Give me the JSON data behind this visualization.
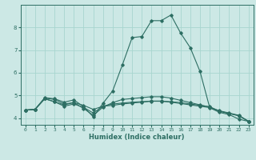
{
  "xlabel": "Humidex (Indice chaleur)",
  "bg_color": "#cce8e5",
  "line_color": "#2d6e63",
  "grid_color": "#a8d5cf",
  "xlim": [
    -0.5,
    23.5
  ],
  "ylim": [
    3.7,
    9.0
  ],
  "yticks": [
    4,
    5,
    6,
    7,
    8
  ],
  "xticks": [
    0,
    1,
    2,
    3,
    4,
    5,
    6,
    7,
    8,
    9,
    10,
    11,
    12,
    13,
    14,
    15,
    16,
    17,
    18,
    19,
    20,
    21,
    22,
    23
  ],
  "series": [
    [
      4.35,
      4.38,
      4.9,
      4.85,
      4.7,
      4.8,
      4.5,
      4.05,
      4.65,
      5.2,
      6.35,
      7.55,
      7.6,
      8.3,
      8.3,
      8.55,
      7.75,
      7.1,
      6.05,
      4.45,
      4.25,
      4.15,
      3.95,
      3.85
    ],
    [
      4.35,
      4.38,
      4.85,
      4.72,
      4.58,
      4.68,
      4.56,
      4.38,
      4.52,
      4.56,
      4.62,
      4.66,
      4.7,
      4.74,
      4.74,
      4.7,
      4.64,
      4.58,
      4.52,
      4.46,
      4.32,
      4.22,
      4.12,
      3.85
    ],
    [
      4.35,
      4.38,
      4.88,
      4.82,
      4.62,
      4.68,
      4.42,
      4.12,
      4.48,
      4.68,
      4.82,
      4.86,
      4.9,
      4.94,
      4.94,
      4.88,
      4.78,
      4.68,
      4.58,
      4.48,
      4.3,
      4.2,
      4.1,
      3.85
    ],
    [
      4.35,
      4.38,
      4.85,
      4.72,
      4.52,
      4.62,
      4.47,
      4.22,
      4.52,
      4.62,
      4.66,
      4.7,
      4.72,
      4.75,
      4.75,
      4.72,
      4.68,
      4.62,
      4.56,
      4.5,
      4.3,
      4.2,
      4.1,
      3.85
    ]
  ]
}
